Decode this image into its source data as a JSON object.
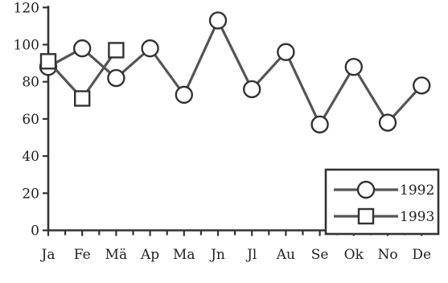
{
  "chart_data": {
    "type": "line",
    "title": "",
    "xlabel": "",
    "ylabel": "",
    "categories": [
      "Ja",
      "Fe",
      "Mä",
      "Ap",
      "Ma",
      "Jn",
      "Jl",
      "Au",
      "Se",
      "Ok",
      "No",
      "De"
    ],
    "y_ticks": [
      0,
      20,
      40,
      60,
      80,
      100,
      120
    ],
    "ylim": [
      0,
      120
    ],
    "grid": false,
    "legend_position": "bottom-right",
    "series": [
      {
        "name": "1992",
        "marker": "circle",
        "values": [
          88,
          98,
          82,
          98,
          73,
          113,
          76,
          96,
          57,
          88,
          58,
          78
        ]
      },
      {
        "name": "1993",
        "marker": "square",
        "values": [
          91,
          71,
          97,
          null,
          null,
          null,
          null,
          null,
          null,
          null,
          null,
          null
        ]
      }
    ]
  }
}
